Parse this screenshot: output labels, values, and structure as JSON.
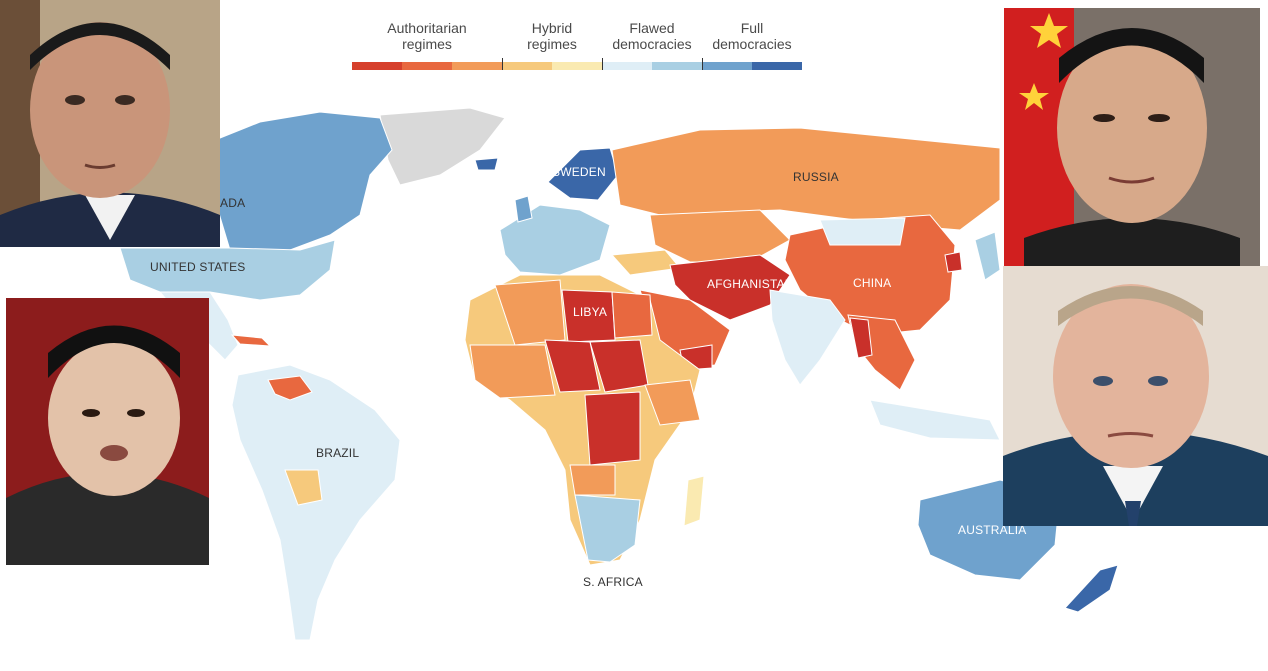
{
  "legend": {
    "categories": [
      {
        "label_line1": "Authoritarian",
        "label_line2": "regimes"
      },
      {
        "label_line1": "Hybrid",
        "label_line2": "regimes"
      },
      {
        "label_line1": "Flawed",
        "label_line2": "democracies"
      },
      {
        "label_line1": "Full",
        "label_line2": "democracies"
      }
    ],
    "scale_colors": [
      "#d6402c",
      "#e8683f",
      "#f29b59",
      "#f6c97c",
      "#faeab1",
      "#dfeef6",
      "#a9cfe3",
      "#6fa2cd",
      "#3a67a8"
    ]
  },
  "map_labels": {
    "canada": "ADA",
    "united_states": "UNITED STATES",
    "brazil": "BRAZIL",
    "sweden": "SWEDEN",
    "russia": "RUSSIA",
    "libya": "LIBYA",
    "afghanistan": "AFGHANISTAN",
    "china": "CHINA",
    "south_africa": "S. AFRICA",
    "australia": "AUSTRALIA"
  },
  "colors": {
    "authoritarian_dark": "#c9302a",
    "authoritarian": "#e8683f",
    "hybrid": "#f29b59",
    "hybrid_light": "#faeab1",
    "flawed": "#dfeef6",
    "flawed_mid": "#a9cfe3",
    "full": "#6fa2cd",
    "full_dark": "#3a67a8",
    "no_data": "#d9d9d9"
  }
}
